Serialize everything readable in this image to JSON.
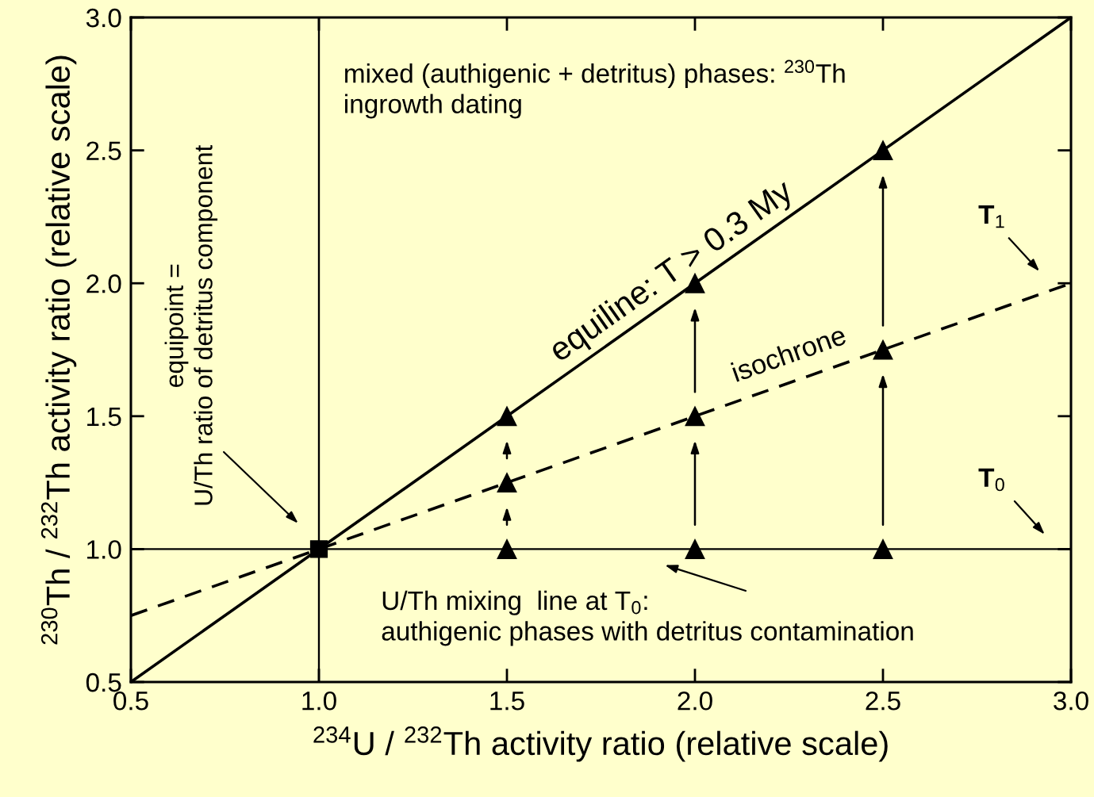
{
  "chart_data": {
    "type": "scatter",
    "xlabel": "$^{234}$U / $^{232}$Th activity ratio (relative scale)",
    "ylabel": "$^{230}$Th / $^{232}$Th activity ratio (relative scale)",
    "xlim": [
      0.5,
      3.0
    ],
    "ylim": [
      0.5,
      3.0
    ],
    "xticks": [
      0.5,
      {
        "value": 1.0,
        "label": "1.0"
      },
      1.5,
      {
        "value": 2.0,
        "label": "2.0"
      },
      2.5,
      {
        "value": 3.0,
        "label": "3.0"
      }
    ],
    "yticks": [
      0.5,
      {
        "value": 1.0,
        "label": "1.0"
      },
      1.5,
      {
        "value": 2.0,
        "label": "2.0"
      },
      2.5,
      {
        "value": 3.0,
        "label": "3.0"
      }
    ],
    "ref_lines": [
      {
        "axis": "x",
        "value": 1.0,
        "color": "#000000",
        "line_style": "solid"
      }
    ],
    "series": [
      {
        "type": "line",
        "color": "#000000",
        "line_style": "solid",
        "marker": "none",
        "x": [
          0.5,
          3.0
        ],
        "values": [
          1.0,
          1.0
        ]
      },
      {
        "name": "equiline: T > 0.3 My",
        "type": "line",
        "color": "#000000",
        "line_style": "solid",
        "marker": "none",
        "x": [
          0.5,
          3.0
        ],
        "values": [
          0.5,
          3.0
        ]
      },
      {
        "name": "isochrone",
        "type": "line",
        "color": "#000000",
        "line_style": "dashed",
        "marker": "none",
        "x": [
          0.5,
          3.0
        ],
        "values": [
          0.75,
          2.0
        ]
      },
      {
        "color": "#000000",
        "marker": "square",
        "x": [
          1.0
        ],
        "values": [
          1.0
        ]
      },
      {
        "color": "#000000",
        "marker": "triangle",
        "x": [
          1.5,
          2.0,
          2.5
        ],
        "values": [
          1.0,
          1.0,
          1.0
        ]
      },
      {
        "color": "#000000",
        "marker": "triangle",
        "x": [
          1.5,
          2.0,
          2.5
        ],
        "values": [
          1.25,
          1.5,
          1.75
        ]
      },
      {
        "color": "#000000",
        "marker": "triangle",
        "x": [
          1.5,
          2.0,
          2.5
        ],
        "values": [
          1.5,
          2.0,
          2.5
        ]
      }
    ],
    "annotations": [
      "mixed (authigenic + detritus) phases: $^{230}$Th\ningrowth dating",
      "equipoint =\nU/Th ratio of detritus component",
      "U/Th mixing  line at T$_{0}$:\nauthigenic phases with detritus contamination",
      "T$_{1}$",
      "T$_{0}$"
    ]
  }
}
